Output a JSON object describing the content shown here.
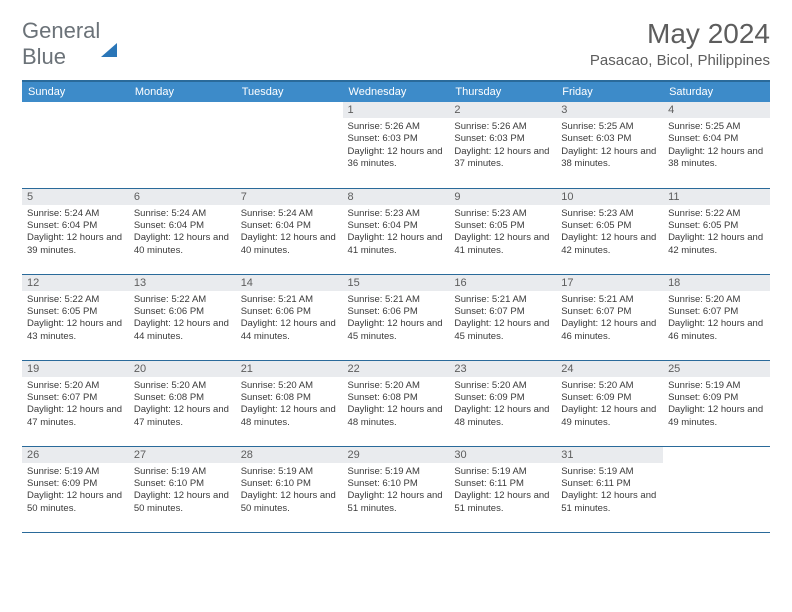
{
  "brand": {
    "part1": "General",
    "part2": "Blue"
  },
  "title": "May 2024",
  "location": "Pasacao, Bicol, Philippines",
  "colors": {
    "header_accent": "#3d8bc9",
    "header_border": "#2a6a9a",
    "daynum_bg": "#e9ebee",
    "text_muted": "#5d5d5d",
    "logo_triangle": "#2a76b8"
  },
  "dayNames": [
    "Sunday",
    "Monday",
    "Tuesday",
    "Wednesday",
    "Thursday",
    "Friday",
    "Saturday"
  ],
  "weeks": [
    [
      {
        "n": "",
        "empty": true
      },
      {
        "n": "",
        "empty": true
      },
      {
        "n": "",
        "empty": true
      },
      {
        "n": "1",
        "sr": "5:26 AM",
        "ss": "6:03 PM",
        "dl": "12 hours and 36 minutes."
      },
      {
        "n": "2",
        "sr": "5:26 AM",
        "ss": "6:03 PM",
        "dl": "12 hours and 37 minutes."
      },
      {
        "n": "3",
        "sr": "5:25 AM",
        "ss": "6:03 PM",
        "dl": "12 hours and 38 minutes."
      },
      {
        "n": "4",
        "sr": "5:25 AM",
        "ss": "6:04 PM",
        "dl": "12 hours and 38 minutes."
      }
    ],
    [
      {
        "n": "5",
        "sr": "5:24 AM",
        "ss": "6:04 PM",
        "dl": "12 hours and 39 minutes."
      },
      {
        "n": "6",
        "sr": "5:24 AM",
        "ss": "6:04 PM",
        "dl": "12 hours and 40 minutes."
      },
      {
        "n": "7",
        "sr": "5:24 AM",
        "ss": "6:04 PM",
        "dl": "12 hours and 40 minutes."
      },
      {
        "n": "8",
        "sr": "5:23 AM",
        "ss": "6:04 PM",
        "dl": "12 hours and 41 minutes."
      },
      {
        "n": "9",
        "sr": "5:23 AM",
        "ss": "6:05 PM",
        "dl": "12 hours and 41 minutes."
      },
      {
        "n": "10",
        "sr": "5:23 AM",
        "ss": "6:05 PM",
        "dl": "12 hours and 42 minutes."
      },
      {
        "n": "11",
        "sr": "5:22 AM",
        "ss": "6:05 PM",
        "dl": "12 hours and 42 minutes."
      }
    ],
    [
      {
        "n": "12",
        "sr": "5:22 AM",
        "ss": "6:05 PM",
        "dl": "12 hours and 43 minutes."
      },
      {
        "n": "13",
        "sr": "5:22 AM",
        "ss": "6:06 PM",
        "dl": "12 hours and 44 minutes."
      },
      {
        "n": "14",
        "sr": "5:21 AM",
        "ss": "6:06 PM",
        "dl": "12 hours and 44 minutes."
      },
      {
        "n": "15",
        "sr": "5:21 AM",
        "ss": "6:06 PM",
        "dl": "12 hours and 45 minutes."
      },
      {
        "n": "16",
        "sr": "5:21 AM",
        "ss": "6:07 PM",
        "dl": "12 hours and 45 minutes."
      },
      {
        "n": "17",
        "sr": "5:21 AM",
        "ss": "6:07 PM",
        "dl": "12 hours and 46 minutes."
      },
      {
        "n": "18",
        "sr": "5:20 AM",
        "ss": "6:07 PM",
        "dl": "12 hours and 46 minutes."
      }
    ],
    [
      {
        "n": "19",
        "sr": "5:20 AM",
        "ss": "6:07 PM",
        "dl": "12 hours and 47 minutes."
      },
      {
        "n": "20",
        "sr": "5:20 AM",
        "ss": "6:08 PM",
        "dl": "12 hours and 47 minutes."
      },
      {
        "n": "21",
        "sr": "5:20 AM",
        "ss": "6:08 PM",
        "dl": "12 hours and 48 minutes."
      },
      {
        "n": "22",
        "sr": "5:20 AM",
        "ss": "6:08 PM",
        "dl": "12 hours and 48 minutes."
      },
      {
        "n": "23",
        "sr": "5:20 AM",
        "ss": "6:09 PM",
        "dl": "12 hours and 48 minutes."
      },
      {
        "n": "24",
        "sr": "5:20 AM",
        "ss": "6:09 PM",
        "dl": "12 hours and 49 minutes."
      },
      {
        "n": "25",
        "sr": "5:19 AM",
        "ss": "6:09 PM",
        "dl": "12 hours and 49 minutes."
      }
    ],
    [
      {
        "n": "26",
        "sr": "5:19 AM",
        "ss": "6:09 PM",
        "dl": "12 hours and 50 minutes."
      },
      {
        "n": "27",
        "sr": "5:19 AM",
        "ss": "6:10 PM",
        "dl": "12 hours and 50 minutes."
      },
      {
        "n": "28",
        "sr": "5:19 AM",
        "ss": "6:10 PM",
        "dl": "12 hours and 50 minutes."
      },
      {
        "n": "29",
        "sr": "5:19 AM",
        "ss": "6:10 PM",
        "dl": "12 hours and 51 minutes."
      },
      {
        "n": "30",
        "sr": "5:19 AM",
        "ss": "6:11 PM",
        "dl": "12 hours and 51 minutes."
      },
      {
        "n": "31",
        "sr": "5:19 AM",
        "ss": "6:11 PM",
        "dl": "12 hours and 51 minutes."
      },
      {
        "n": "",
        "empty": true
      }
    ]
  ],
  "labels": {
    "sunrise": "Sunrise:",
    "sunset": "Sunset:",
    "daylight": "Daylight:"
  }
}
